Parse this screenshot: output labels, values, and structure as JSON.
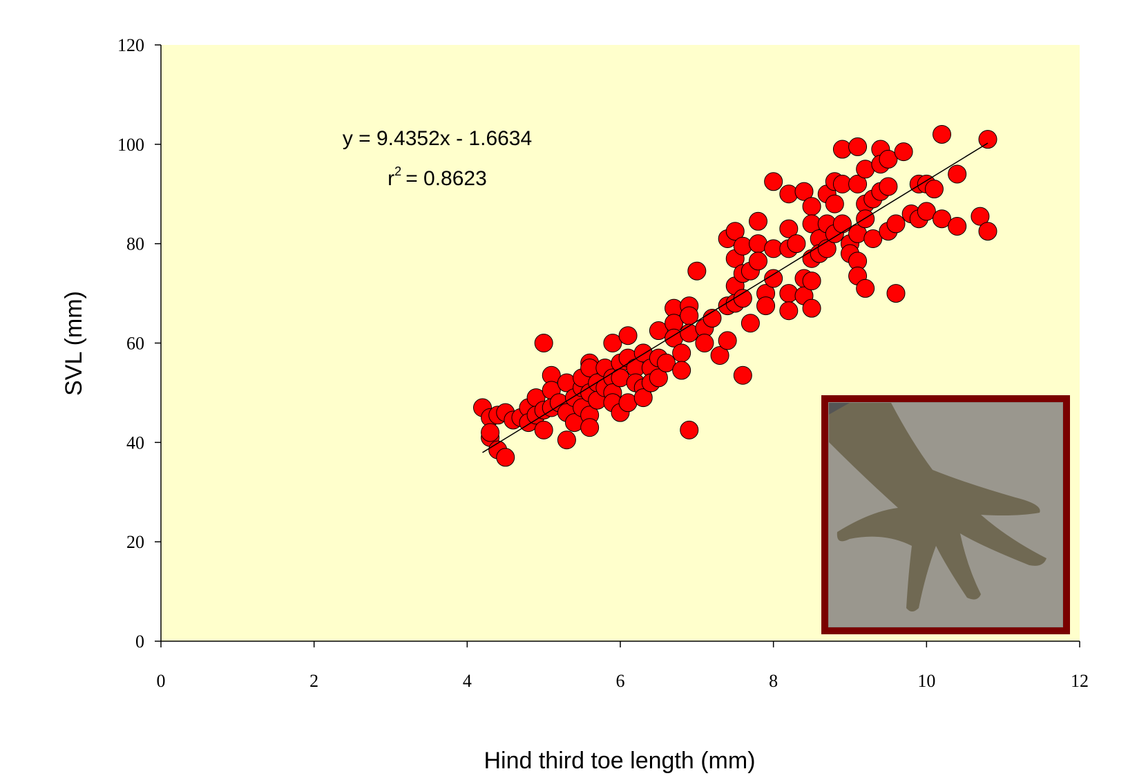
{
  "chart_data": {
    "type": "scatter",
    "x_label": "Hind third toe length (mm)",
    "y_label": "SVL (mm)",
    "equation": "y = 9.4352x - 1.6634",
    "r_squared": {
      "base": "r",
      "sup": "2",
      "text": "= 0.8623"
    },
    "color": "#ff0000",
    "background": "#ffffcc",
    "xlim": [
      0,
      12
    ],
    "ylim": [
      0,
      120
    ],
    "xticks": [
      0,
      2,
      4,
      6,
      8,
      10,
      12
    ],
    "yticks": [
      0,
      20,
      40,
      60,
      80,
      100,
      120
    ],
    "trendline": {
      "x": [
        4.2,
        10.8
      ],
      "y": [
        37.97,
        100.24
      ]
    },
    "x": [
      4.2,
      4.3,
      4.3,
      4.3,
      4.4,
      4.4,
      4.5,
      4.5,
      4.6,
      4.7,
      4.8,
      4.8,
      4.9,
      4.9,
      5.0,
      5.0,
      5.0,
      5.1,
      5.1,
      5.1,
      5.2,
      5.3,
      5.3,
      5.3,
      5.4,
      5.4,
      5.5,
      5.5,
      5.5,
      5.6,
      5.6,
      5.6,
      5.6,
      5.6,
      5.7,
      5.7,
      5.8,
      5.8,
      5.9,
      5.9,
      5.9,
      5.9,
      6.0,
      6.0,
      6.0,
      6.1,
      6.1,
      6.1,
      6.2,
      6.2,
      6.3,
      6.3,
      6.3,
      6.4,
      6.4,
      6.5,
      6.5,
      6.5,
      6.6,
      6.7,
      6.7,
      6.7,
      6.8,
      6.8,
      6.9,
      6.9,
      6.9,
      6.9,
      7.0,
      7.1,
      7.1,
      7.2,
      7.3,
      7.4,
      7.4,
      7.4,
      7.5,
      7.5,
      7.5,
      7.5,
      7.6,
      7.6,
      7.6,
      7.6,
      7.7,
      7.7,
      7.8,
      7.8,
      7.8,
      7.9,
      7.9,
      8.0,
      8.0,
      8.0,
      8.2,
      8.2,
      8.2,
      8.2,
      8.2,
      8.3,
      8.4,
      8.4,
      8.4,
      8.5,
      8.5,
      8.5,
      8.5,
      8.5,
      8.6,
      8.6,
      8.7,
      8.7,
      8.7,
      8.8,
      8.8,
      8.8,
      8.9,
      8.9,
      8.9,
      9.0,
      9.0,
      9.1,
      9.1,
      9.1,
      9.1,
      9.1,
      9.2,
      9.2,
      9.2,
      9.2,
      9.3,
      9.3,
      9.4,
      9.4,
      9.4,
      9.5,
      9.5,
      9.5,
      9.6,
      9.6,
      9.7,
      9.8,
      9.9,
      9.9,
      10.0,
      10.0,
      10.1,
      10.2,
      10.2,
      10.4,
      10.4,
      10.7,
      10.8,
      10.8
    ],
    "values": [
      47,
      45,
      41,
      42,
      45.5,
      38.5,
      37,
      46,
      44.5,
      45,
      47,
      44,
      49,
      45.5,
      60,
      42.5,
      46.5,
      53.5,
      50.5,
      47,
      48,
      52,
      40.5,
      46,
      44,
      49,
      51,
      53,
      47,
      56,
      45.5,
      43,
      55,
      50,
      52,
      48.5,
      55,
      51,
      60,
      53,
      50,
      48,
      56,
      53,
      46,
      61.5,
      57,
      48,
      55,
      52,
      58,
      51,
      49,
      55,
      52,
      62.5,
      57,
      53,
      56,
      67,
      64,
      61,
      58,
      54.5,
      67.5,
      65.5,
      62,
      42.5,
      74.5,
      63,
      60,
      65,
      57.5,
      81,
      67.5,
      60.5,
      82.5,
      77,
      71.5,
      68,
      79.5,
      74,
      69,
      53.5,
      74.5,
      64,
      84.5,
      80,
      76.5,
      70,
      67.5,
      92.5,
      79,
      73,
      90,
      83,
      79,
      70,
      66.5,
      80,
      90.5,
      73,
      69.5,
      87.5,
      84,
      77,
      72.5,
      67,
      81,
      78,
      90,
      84,
      79,
      92.5,
      88,
      82,
      99,
      92,
      84,
      80,
      78,
      99.5,
      92,
      82,
      76.5,
      73.5,
      95,
      88,
      85,
      71,
      89,
      81,
      99,
      96,
      90.5,
      97,
      91.5,
      82.5,
      84,
      70,
      98.5,
      86,
      92,
      85,
      92,
      86.5,
      91,
      102,
      85,
      94,
      83.5,
      85.5,
      101,
      82.5
    ]
  }
}
